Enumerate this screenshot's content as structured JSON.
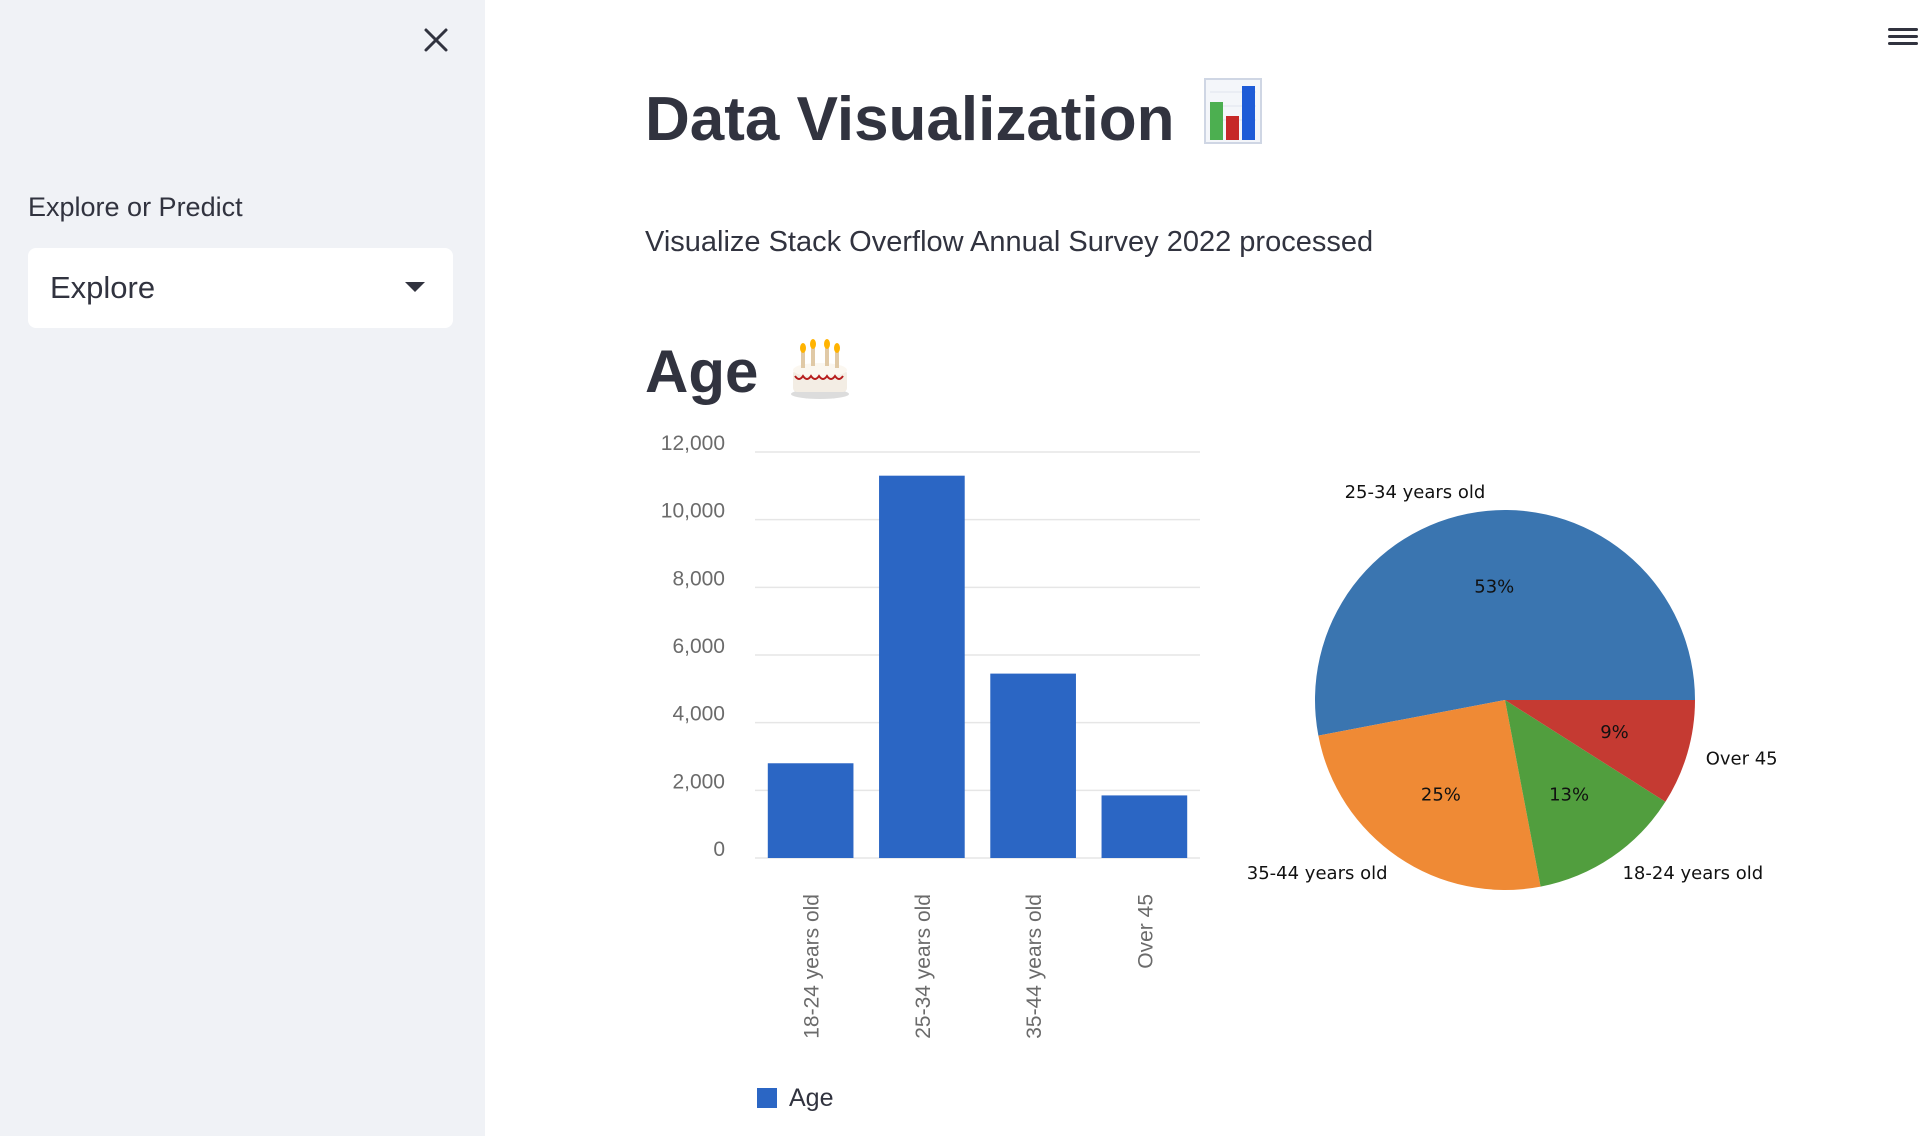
{
  "sidebar": {
    "select_label": "Explore or Predict",
    "select_value": "Explore"
  },
  "main": {
    "title": "Data Visualization",
    "subtitle": "Visualize Stack Overflow Annual Survey 2022 processed",
    "section_title": "Age"
  },
  "icons": {
    "close": "close-icon",
    "menu": "hamburger-menu-icon",
    "title_emoji": "bar-chart-emoji-icon",
    "section_emoji": "birthday-cake-emoji-icon"
  },
  "chart_data": [
    {
      "type": "bar",
      "categories": [
        "18-24 years old",
        "25-34 years old",
        "35-44 years old",
        "Over 45"
      ],
      "series": [
        {
          "name": "Age",
          "values": [
            2800,
            11300,
            5450,
            1850
          ],
          "color": "#2b66c4"
        }
      ],
      "ylim": [
        0,
        12000
      ],
      "yticks": [
        0,
        2000,
        4000,
        6000,
        8000,
        10000,
        12000
      ],
      "ytick_labels": [
        "0",
        "2,000",
        "4,000",
        "6,000",
        "8,000",
        "10,000",
        "12,000"
      ],
      "legend": "bottom",
      "grid": true
    },
    {
      "type": "pie",
      "labels": [
        "25-34 years old",
        "35-44 years old",
        "18-24 years old",
        "Over 45"
      ],
      "values": [
        53,
        25,
        13,
        9
      ],
      "pct_labels": [
        "53%",
        "25%",
        "13%",
        "9%"
      ],
      "colors": [
        "#3a75b0",
        "#ef8a35",
        "#519e3e",
        "#c53a32"
      ]
    }
  ]
}
